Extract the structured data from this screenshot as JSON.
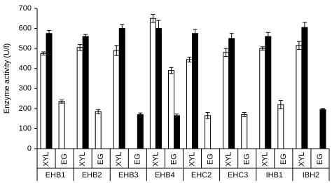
{
  "chart_data": {
    "type": "grouped_bar",
    "y_label": "Enzyme activity (U/l)",
    "groups": [
      "EHB1",
      "EHB2",
      "EHB3",
      "EHB4",
      "EHC2",
      "EHC3",
      "IHB1",
      "IBH2"
    ],
    "categories": [
      "XYL",
      "EG",
      "XYL",
      "EG",
      "XYL",
      "EG",
      "XYL",
      "EG",
      "XYL",
      "EG",
      "XYL",
      "EG",
      "XYL",
      "EG",
      "XYL",
      "EG"
    ],
    "series": [
      {
        "color": "#ffffff",
        "values": [
          475,
          235,
          505,
          185,
          490,
          null,
          650,
          390,
          445,
          165,
          480,
          170,
          500,
          220,
          515,
          null
        ],
        "errors": [
          8,
          8,
          15,
          10,
          25,
          null,
          20,
          15,
          12,
          15,
          20,
          10,
          8,
          20,
          20,
          null
        ]
      },
      {
        "color": "#000000",
        "values": [
          575,
          null,
          560,
          null,
          600,
          170,
          600,
          165,
          575,
          null,
          550,
          null,
          560,
          null,
          605,
          195
        ],
        "errors": [
          15,
          null,
          10,
          null,
          20,
          8,
          40,
          8,
          20,
          null,
          25,
          null,
          20,
          null,
          25,
          5
        ]
      }
    ],
    "ylim": [
      0,
      700
    ],
    "yticks": [
      0,
      100,
      200,
      300,
      400,
      500,
      600,
      700
    ]
  }
}
